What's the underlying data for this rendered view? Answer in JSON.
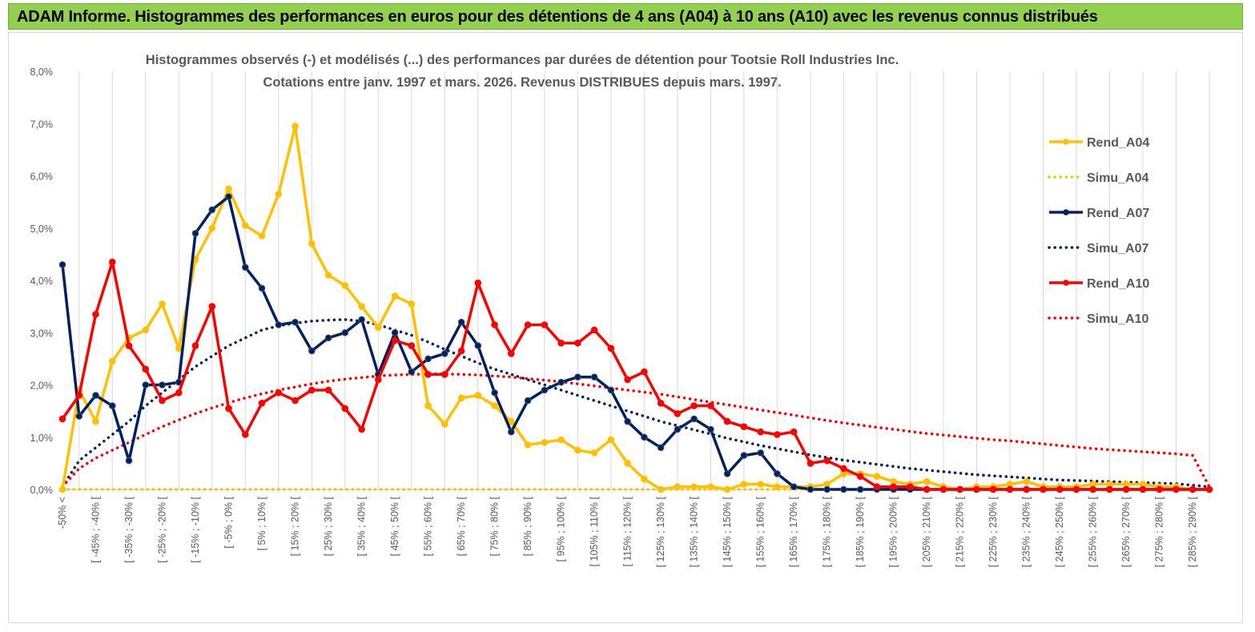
{
  "banner": {
    "title": "ADAM Informe. Histogrammes des performances en euros pour des détentions de 4 ans (A04) à 10 ans (A10) avec les revenus connus distribués"
  },
  "chart_data": {
    "type": "line",
    "title": "Histogrammes observés (-) et modélisés (...) des performances par durées de détention pour Tootsie Roll Industries Inc.",
    "subtitle": "Cotations entre janv. 1997 et mars. 2026. Revenus DISTRIBUES depuis mars. 1997.",
    "xlabel": "",
    "ylabel": "",
    "ylim": [
      0,
      8
    ],
    "y_ticks": [
      "0,0%",
      "1,0%",
      "2,0%",
      "3,0%",
      "4,0%",
      "5,0%",
      "6,0%",
      "7,0%",
      "8,0%"
    ],
    "grid": "vertical",
    "legend_position": "right",
    "x_tick_labels": [
      "-50% <",
      "[ -45% ; -40% [",
      "[ -35% ; -30% [",
      "[ -25% ; -20% [",
      "[ -15% ; -10% [",
      "[ -5% ; 0% [",
      "[ 5% ; 10% [",
      "[ 15% ; 20% [",
      "[ 25% ; 30% [",
      "[ 35% ; 40% [",
      "[ 45% ; 50% [",
      "[ 55% ; 60% [",
      "[ 65% ; 70% [",
      "[ 75% ; 80% [",
      "[ 85% ; 90% [",
      "[ 95% ; 100% [",
      "[ 105% ; 110% [",
      "[ 115% ; 120% [",
      "[ 125% ; 130% [",
      "[ 135% ; 140% [",
      "[ 145% ; 150% [",
      "[ 155% ; 160% [",
      "[ 165% ; 170% [",
      "[ 175% ; 180% [",
      "[ 185% ; 190% [",
      "[ 195% ; 200% [",
      "[ 205% ; 210% [",
      "[ 215% ; 220% [",
      "[ 225% ; 230% [",
      "[ 235% ; 240% [",
      "[ 245% ; 250% [",
      "[ 255% ; 260% [",
      "[ 265% ; 270% [",
      "[ 275% ; 280% [",
      "[ 285% ; 290% ["
    ],
    "series": [
      {
        "name": "Rend_A04",
        "color": "#ffc000",
        "style": "solid",
        "markers": true,
        "values": [
          0.0,
          1.9,
          1.3,
          2.45,
          2.9,
          3.05,
          3.55,
          2.7,
          4.4,
          5.0,
          5.75,
          5.05,
          4.85,
          5.65,
          6.95,
          4.7,
          4.1,
          3.9,
          3.5,
          3.1,
          3.7,
          3.55,
          1.6,
          1.25,
          1.75,
          1.8,
          1.6,
          1.3,
          0.85,
          0.9,
          0.95,
          0.75,
          0.7,
          0.95,
          0.5,
          0.2,
          0.0,
          0.05,
          0.05,
          0.05,
          0.0,
          0.1,
          0.1,
          0.05,
          0.05,
          0.05,
          0.1,
          0.3,
          0.3,
          0.25,
          0.15,
          0.1,
          0.15,
          0.05,
          0.0,
          0.05,
          0.05,
          0.1,
          0.15,
          0.05,
          0.05,
          0.05,
          0.1,
          0.1,
          0.1,
          0.1,
          0.05,
          0.05,
          0.0,
          0.0
        ]
      },
      {
        "name": "Simu_A04",
        "color": "#ffc000",
        "style": "dotted",
        "markers": false,
        "values": [
          0.0,
          0.0,
          0.0,
          0.0,
          0.0,
          0.0,
          0.0,
          0.0,
          0.0,
          0.0,
          0.0,
          0.0,
          0.0,
          0.0,
          0.0,
          0.0,
          0.0,
          0.0,
          0.0,
          0.0,
          0.0,
          0.0,
          0.0,
          0.0,
          0.0,
          0.0,
          0.0,
          0.0,
          0.0,
          0.0,
          0.0,
          0.0,
          0.0,
          0.0,
          0.0,
          0.0,
          0.0,
          0.0,
          0.0,
          0.0,
          0.0,
          0.0,
          0.0,
          0.0,
          0.0,
          0.0,
          0.0,
          0.0,
          0.0,
          0.0,
          0.0,
          0.0,
          0.0,
          0.0,
          0.0,
          0.0,
          0.0,
          0.0,
          0.0,
          0.0,
          0.0,
          0.0,
          0.0,
          0.0,
          0.0,
          0.0,
          0.0,
          0.0,
          0.0,
          0.0
        ]
      },
      {
        "name": "Rend_A07",
        "color": "#002060",
        "style": "solid",
        "markers": true,
        "values": [
          4.3,
          1.4,
          1.8,
          1.6,
          0.55,
          2.0,
          2.0,
          2.05,
          4.9,
          5.35,
          5.6,
          4.25,
          3.85,
          3.15,
          3.2,
          2.65,
          2.9,
          3.0,
          3.25,
          2.2,
          3.0,
          2.25,
          2.5,
          2.6,
          3.2,
          2.75,
          1.85,
          1.1,
          1.7,
          1.9,
          2.05,
          2.15,
          2.15,
          1.9,
          1.3,
          1.0,
          0.8,
          1.15,
          1.35,
          1.15,
          0.3,
          0.65,
          0.7,
          0.3,
          0.05,
          0.0,
          0.0,
          0.0,
          0.0,
          0.0,
          0.0,
          0.0,
          0.0,
          0.0,
          0.0,
          0.0,
          0.0,
          0.0,
          0.0,
          0.0,
          0.0,
          0.0,
          0.0,
          0.0,
          0.0,
          0.0,
          0.0,
          0.0,
          0.0,
          0.0
        ]
      },
      {
        "name": "Simu_A07",
        "color": "#002060",
        "style": "dotted",
        "markers": false,
        "values": [
          0.05,
          0.55,
          0.8,
          1.05,
          1.3,
          1.6,
          1.85,
          2.1,
          2.35,
          2.55,
          2.75,
          2.9,
          3.05,
          3.13,
          3.18,
          3.22,
          3.24,
          3.25,
          3.22,
          3.15,
          3.05,
          2.95,
          2.82,
          2.68,
          2.55,
          2.42,
          2.3,
          2.2,
          2.1,
          2.0,
          1.9,
          1.8,
          1.7,
          1.6,
          1.5,
          1.4,
          1.3,
          1.22,
          1.14,
          1.06,
          0.98,
          0.91,
          0.84,
          0.78,
          0.72,
          0.66,
          0.61,
          0.56,
          0.52,
          0.48,
          0.44,
          0.4,
          0.37,
          0.34,
          0.31,
          0.28,
          0.26,
          0.24,
          0.22,
          0.2,
          0.18,
          0.17,
          0.16,
          0.15,
          0.14,
          0.13,
          0.12,
          0.11,
          0.08,
          0.05
        ]
      },
      {
        "name": "Rend_A10",
        "color": "#ff0000",
        "style": "solid",
        "markers": true,
        "values": [
          1.35,
          1.8,
          3.35,
          4.35,
          2.75,
          2.3,
          1.7,
          1.85,
          2.75,
          3.5,
          1.55,
          1.05,
          1.65,
          1.85,
          1.7,
          1.9,
          1.9,
          1.55,
          1.15,
          2.1,
          2.85,
          2.75,
          2.2,
          2.2,
          2.65,
          3.95,
          3.15,
          2.6,
          3.15,
          3.15,
          2.8,
          2.8,
          3.05,
          2.7,
          2.1,
          2.25,
          1.65,
          1.45,
          1.6,
          1.6,
          1.3,
          1.2,
          1.1,
          1.05,
          1.1,
          0.5,
          0.55,
          0.4,
          0.25,
          0.05,
          0.05,
          0.05,
          0.0,
          0.0,
          0.0,
          0.0,
          0.0,
          0.0,
          0.0,
          0.0,
          0.0,
          0.0,
          0.0,
          0.0,
          0.0,
          0.0,
          0.0,
          0.0,
          0.0,
          0.0
        ]
      },
      {
        "name": "Simu_A10",
        "color": "#ff0000",
        "style": "dotted",
        "markers": false,
        "values": [
          0.05,
          0.4,
          0.6,
          0.75,
          0.9,
          1.05,
          1.2,
          1.33,
          1.45,
          1.56,
          1.66,
          1.75,
          1.83,
          1.9,
          1.96,
          2.02,
          2.07,
          2.11,
          2.14,
          2.17,
          2.19,
          2.2,
          2.21,
          2.21,
          2.2,
          2.19,
          2.17,
          2.15,
          2.12,
          2.09,
          2.06,
          2.02,
          1.98,
          1.94,
          1.9,
          1.86,
          1.82,
          1.77,
          1.72,
          1.67,
          1.62,
          1.57,
          1.52,
          1.47,
          1.42,
          1.37,
          1.32,
          1.27,
          1.23,
          1.19,
          1.15,
          1.11,
          1.07,
          1.04,
          1.01,
          0.98,
          0.95,
          0.93,
          0.9,
          0.87,
          0.84,
          0.81,
          0.78,
          0.76,
          0.74,
          0.72,
          0.7,
          0.68,
          0.65,
          0.05
        ]
      }
    ]
  }
}
